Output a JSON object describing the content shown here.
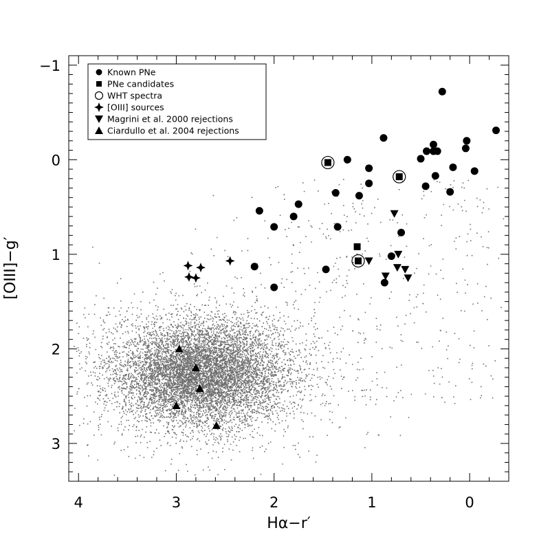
{
  "chart_data": {
    "type": "scatter",
    "title": "",
    "xlabel": "Hα−r′",
    "ylabel": "[OIII]−g′",
    "xlim": [
      4.1,
      -0.4
    ],
    "ylim": [
      3.4,
      -1.1
    ],
    "x_ticks": [
      4,
      3,
      2,
      1,
      0
    ],
    "y_ticks": [
      -1,
      0,
      1,
      2,
      3
    ],
    "x_tick_labels": [
      "4",
      "3",
      "2",
      "1",
      "0"
    ],
    "y_tick_labels": [
      "−1",
      "0",
      "1",
      "2",
      "3"
    ],
    "legend_position": "top-left",
    "colors": {
      "background_points": "#6e6e6e",
      "markers": "#000000",
      "axes": "#000000"
    },
    "background_cloud": {
      "description_for_render": "dense grey field-star locus",
      "center": [
        2.75,
        2.25
      ],
      "count": 9000
    },
    "series": [
      {
        "name": "Known PNe",
        "marker": "filled-circle",
        "points": [
          [
            -0.27,
            -0.31
          ],
          [
            0.28,
            -0.72
          ],
          [
            0.37,
            -0.16
          ],
          [
            0.37,
            -0.09
          ],
          [
            0.44,
            -0.09
          ],
          [
            0.33,
            -0.09
          ],
          [
            0.5,
            -0.01
          ],
          [
            0.03,
            -0.2
          ],
          [
            0.04,
            -0.12
          ],
          [
            0.17,
            0.08
          ],
          [
            0.35,
            0.17
          ],
          [
            0.45,
            0.28
          ],
          [
            -0.05,
            0.12
          ],
          [
            0.2,
            0.34
          ],
          [
            0.88,
            -0.23
          ],
          [
            1.25,
            0.0
          ],
          [
            1.03,
            0.09
          ],
          [
            1.03,
            0.25
          ],
          [
            1.37,
            0.35
          ],
          [
            1.13,
            0.38
          ],
          [
            1.35,
            0.71
          ],
          [
            1.75,
            0.47
          ],
          [
            1.8,
            0.6
          ],
          [
            2.15,
            0.54
          ],
          [
            2.0,
            0.71
          ],
          [
            0.7,
            0.77
          ],
          [
            0.8,
            1.02
          ],
          [
            0.87,
            1.3
          ],
          [
            2.2,
            1.13
          ],
          [
            2.0,
            1.35
          ],
          [
            1.47,
            1.16
          ]
        ]
      },
      {
        "name": "PNe candidates",
        "marker": "filled-square",
        "points": [
          [
            1.45,
            0.03
          ],
          [
            0.72,
            0.18
          ],
          [
            1.15,
            0.92
          ],
          [
            1.14,
            1.07
          ]
        ]
      },
      {
        "name": "WHT spectra",
        "marker": "open-circle",
        "points": [
          [
            1.45,
            0.03
          ],
          [
            0.72,
            0.18
          ],
          [
            1.14,
            1.07
          ]
        ]
      },
      {
        "name": "[OIII] sources",
        "marker": "four-point-star",
        "points": [
          [
            2.88,
            1.12
          ],
          [
            2.75,
            1.14
          ],
          [
            2.45,
            1.07
          ],
          [
            2.87,
            1.24
          ],
          [
            2.8,
            1.25
          ]
        ]
      },
      {
        "name": "Magrini et al. 2000 rejections",
        "marker": "down-triangle",
        "points": [
          [
            0.77,
            0.57
          ],
          [
            0.73,
            1.0
          ],
          [
            1.03,
            1.07
          ],
          [
            0.86,
            1.23
          ],
          [
            0.74,
            1.14
          ],
          [
            0.66,
            1.16
          ],
          [
            0.63,
            1.25
          ]
        ]
      },
      {
        "name": "Ciardullo et al. 2004 rejections",
        "marker": "up-triangle",
        "points": [
          [
            2.97,
            2.0
          ],
          [
            2.8,
            2.2
          ],
          [
            2.76,
            2.42
          ],
          [
            3.0,
            2.6
          ],
          [
            2.59,
            2.81
          ]
        ]
      }
    ]
  }
}
